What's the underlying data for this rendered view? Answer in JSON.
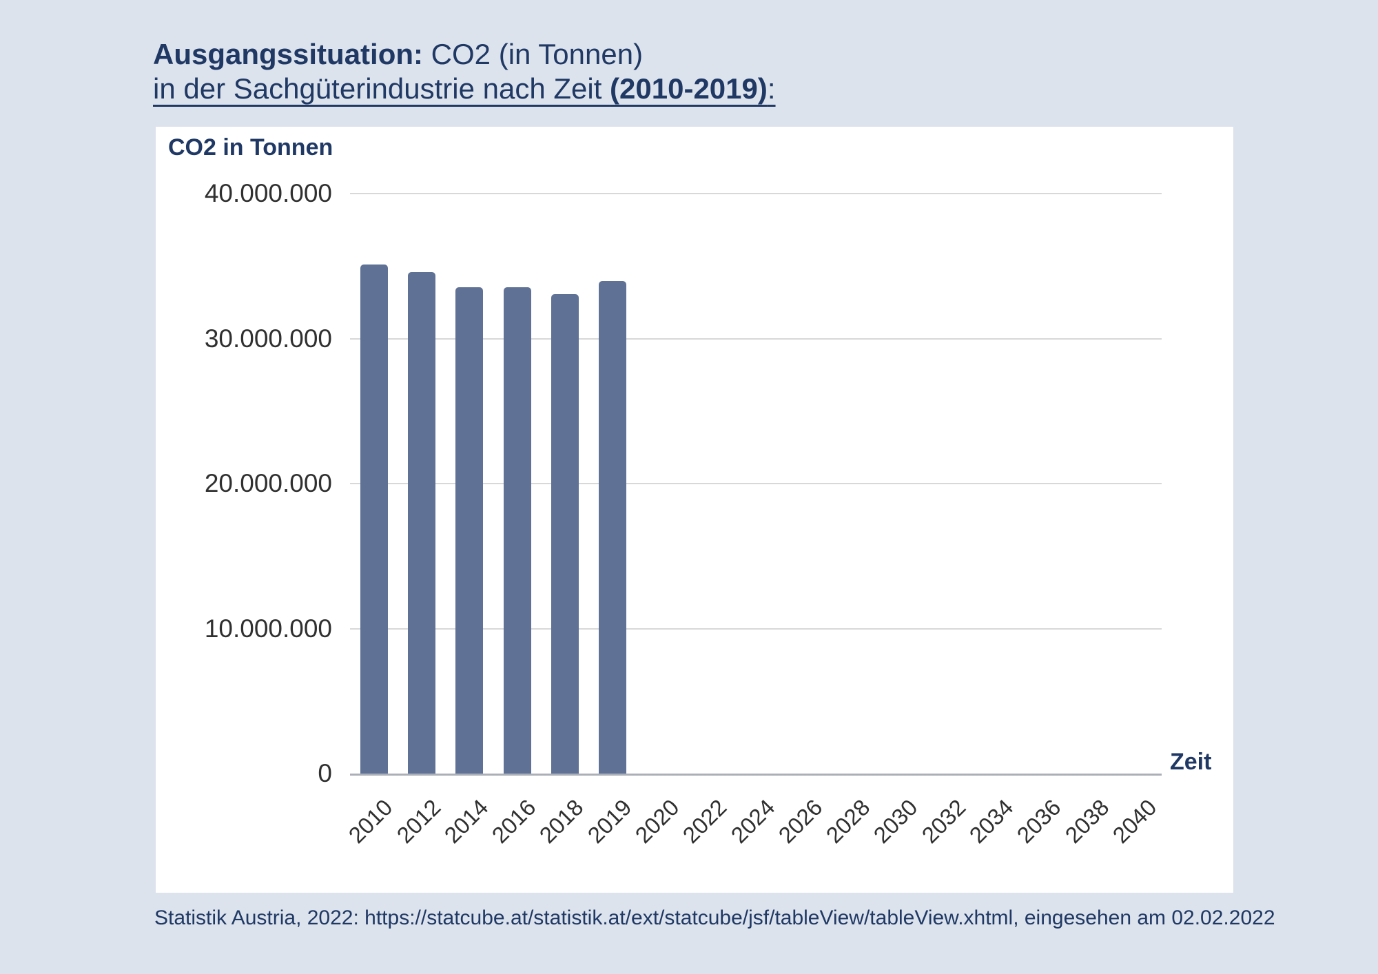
{
  "title": {
    "line1_bold": "Ausgangssituation:",
    "line1_rest": " CO2 (in Tonnen)",
    "line2_regular": "in der Sachgüterindustrie nach Zeit ",
    "line2_bold": "(2010-2019)",
    "line2_suffix": ":"
  },
  "chart": {
    "y_axis_title": "CO2 in Tonnen",
    "x_axis_title": "Zeit"
  },
  "footer": {
    "source": "Statistik Austria, 2022: https://statcube.at/statistik.at/ext/statcube/jsf/tableView/tableView.xhtml, eingesehen am 02.02.2022"
  },
  "theme": {
    "background": "#dce3ed",
    "panel": "#ffffff",
    "navy": "#1f3864",
    "bar": "#5f7296",
    "gridline": "#d8d8d8",
    "axis_line": "#abb0b8",
    "tick_text": "#303030"
  },
  "chart_data": {
    "type": "bar",
    "title": "Ausgangssituation: CO2 (in Tonnen) in der Sachgüterindustrie nach Zeit (2010-2019)",
    "ylabel": "CO2 in Tonnen",
    "xlabel": "Zeit",
    "ylim": [
      0,
      40000000
    ],
    "grid": true,
    "legend_position": "none",
    "y_ticks": [
      {
        "value": 0,
        "label": "0"
      },
      {
        "value": 10000000,
        "label": "10.000.000"
      },
      {
        "value": 20000000,
        "label": "20.000.000"
      },
      {
        "value": 30000000,
        "label": "30.000.000"
      },
      {
        "value": 40000000,
        "label": "40.000.000"
      }
    ],
    "categories": [
      "2010",
      "2012",
      "2014",
      "2016",
      "2018",
      "2019",
      "2020",
      "2022",
      "2024",
      "2026",
      "2028",
      "2030",
      "2032",
      "2034",
      "2036",
      "2038",
      "2040"
    ],
    "values": [
      35100000,
      34600000,
      33550000,
      33550000,
      33050000,
      33950000,
      null,
      null,
      null,
      null,
      null,
      null,
      null,
      null,
      null,
      null,
      null
    ]
  }
}
